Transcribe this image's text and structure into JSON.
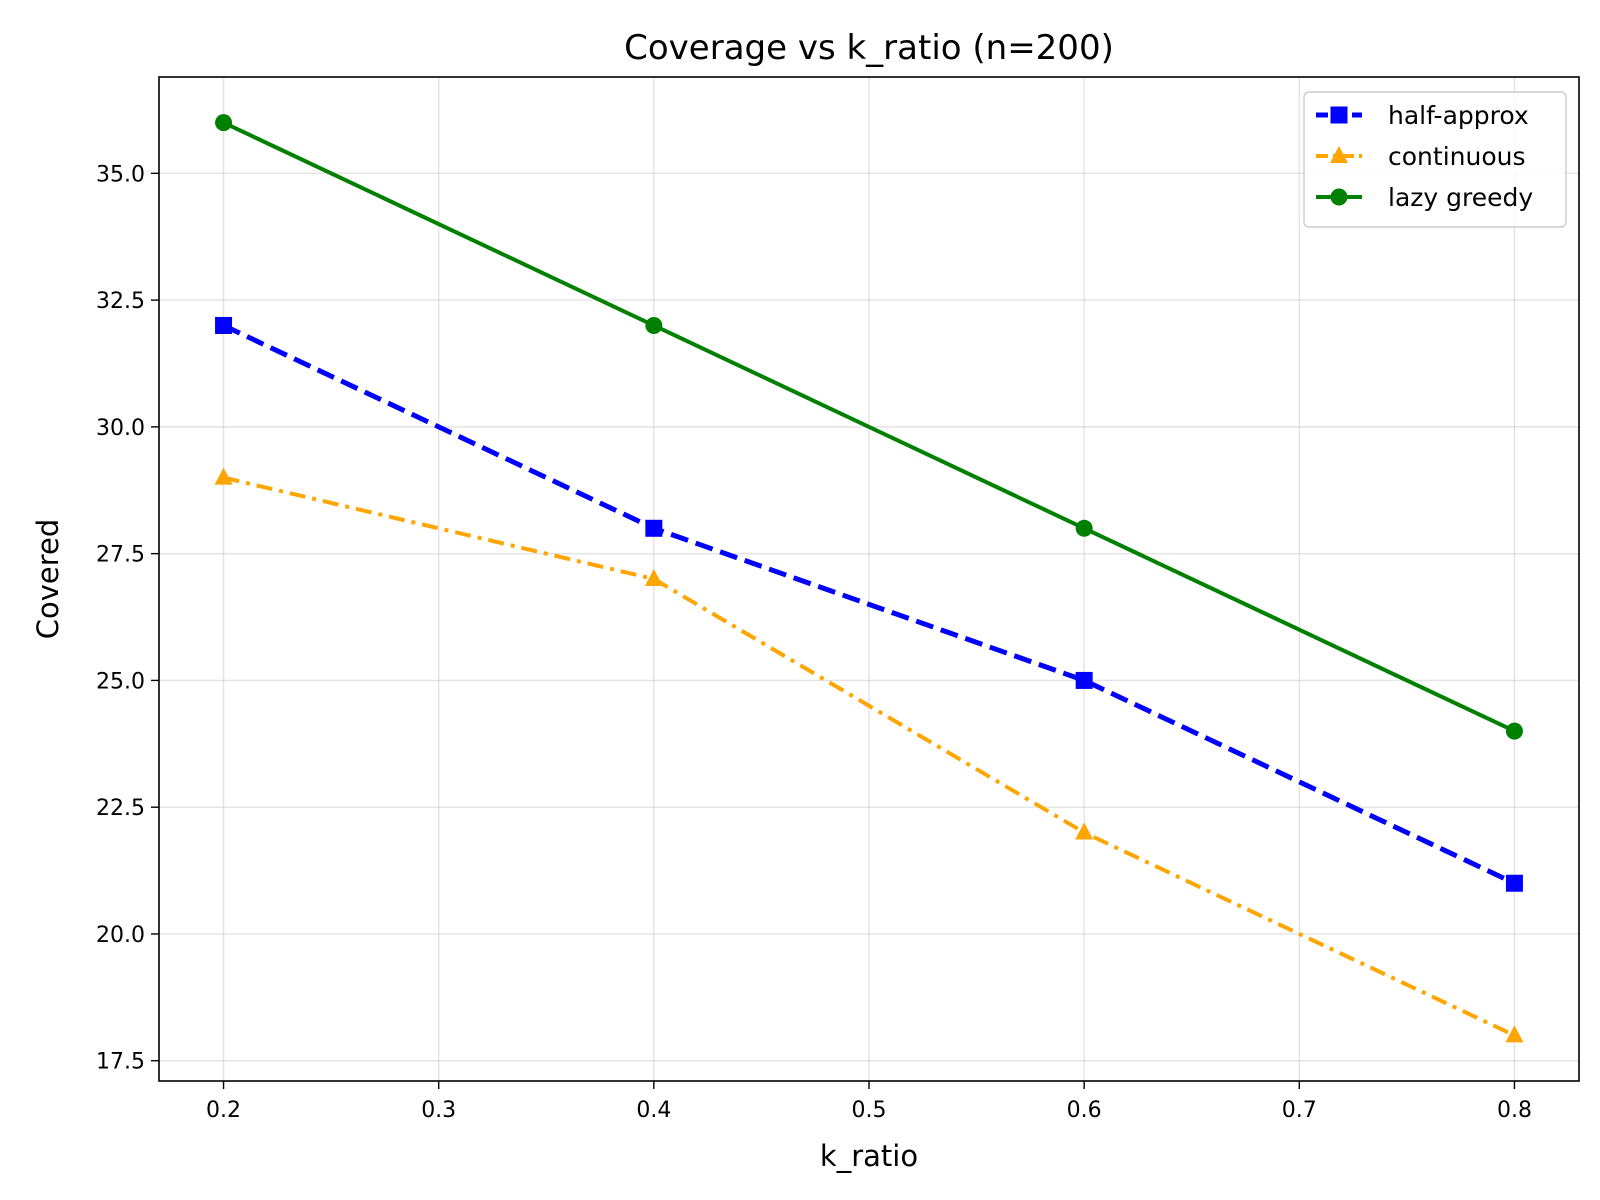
{
  "chart_data": {
    "type": "line",
    "title": "Coverage vs k_ratio (n=200)",
    "xlabel": "k_ratio",
    "ylabel": "Covered",
    "x": [
      0.2,
      0.4,
      0.6,
      0.8
    ],
    "xlim": [
      0.17,
      0.83
    ],
    "ylim": [
      17.1,
      36.9
    ],
    "xticks": [
      0.2,
      0.3,
      0.4,
      0.5,
      0.6,
      0.7,
      0.8
    ],
    "yticks": [
      17.5,
      20.0,
      22.5,
      25.0,
      27.5,
      30.0,
      32.5,
      35.0
    ],
    "grid": true,
    "legend_position": "top-right",
    "series": [
      {
        "name": "half-approx",
        "values": [
          32,
          28,
          25,
          21
        ],
        "color": "#0000ff",
        "linestyle": "dashed",
        "marker": "square"
      },
      {
        "name": "continuous",
        "values": [
          29,
          27,
          22,
          18
        ],
        "color": "#ffa500",
        "linestyle": "dashdot",
        "marker": "triangle"
      },
      {
        "name": "lazy greedy",
        "values": [
          36,
          32,
          28,
          24
        ],
        "color": "#008000",
        "linestyle": "solid",
        "marker": "circle"
      }
    ]
  }
}
